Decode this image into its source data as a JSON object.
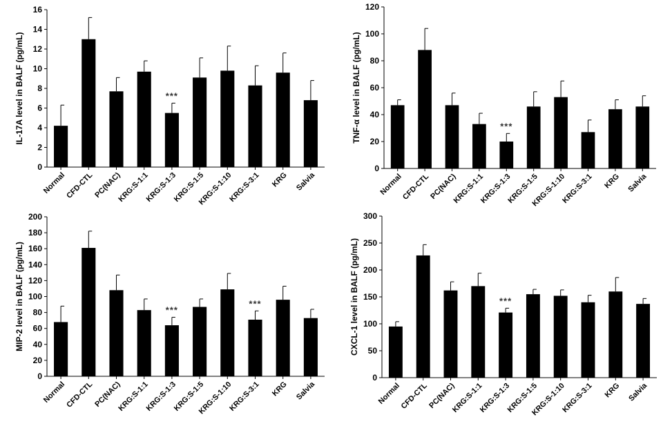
{
  "colors": {
    "bar": "#000000",
    "axis": "#000000",
    "background": "#ffffff"
  },
  "chart_data": [
    {
      "type": "bar",
      "ylabel": "IL-17A level in BALF (pg/mL)",
      "categories": [
        "Normal",
        "CFD-CTL",
        "PC(NAC)",
        "KRG:S-1:1",
        "KRG:S-1:3",
        "KRG:S-1:5",
        "KRG:S-1:10",
        "KRG:S-3:1",
        "KRG",
        "Salvia"
      ],
      "values": [
        4.2,
        13.0,
        7.7,
        9.7,
        5.5,
        9.1,
        9.8,
        8.3,
        9.6,
        6.8
      ],
      "errors": [
        2.1,
        2.2,
        1.4,
        1.1,
        1.0,
        2.0,
        2.5,
        2.0,
        2.0,
        2.0
      ],
      "ylim": [
        0,
        16
      ],
      "yticks": [
        "0",
        "2",
        "4",
        "6",
        "8",
        "10",
        "12",
        "14",
        "16"
      ],
      "significance": [
        {
          "category": "KRG:S-1:3",
          "label": "***"
        }
      ]
    },
    {
      "type": "bar",
      "ylabel": "TNF-α level in BALF (pg/mL)",
      "categories": [
        "Normal",
        "CFD-CTL",
        "PC(NAC)",
        "KRG:S-1:1",
        "KRG:S-1:3",
        "KRG:S-1:5",
        "KRG:S-1:10",
        "KRG:S-3:1",
        "KRG",
        "Salvia"
      ],
      "values": [
        47,
        88,
        47,
        33,
        20,
        46,
        53,
        27,
        44,
        46
      ],
      "errors": [
        4,
        16,
        9,
        8,
        6,
        11,
        12,
        9,
        7,
        8
      ],
      "ylim": [
        0,
        120
      ],
      "yticks": [
        "0",
        "20",
        "40",
        "60",
        "80",
        "100",
        "120"
      ],
      "significance": [
        {
          "category": "KRG:S-1:3",
          "label": "***"
        }
      ]
    },
    {
      "type": "bar",
      "ylabel": "MIP-2 level in BALF (pg/mL)",
      "categories": [
        "Normal",
        "CFD-CTL",
        "PC(NAC)",
        "KRG:S-1:1",
        "KRG:S-1:3",
        "KRG:S-1:5",
        "KRG:S-1:10",
        "KRG:S-3:1",
        "KRG",
        "Salvia"
      ],
      "values": [
        68,
        161,
        108,
        83,
        64,
        87,
        109,
        71,
        96,
        73
      ],
      "errors": [
        20,
        21,
        19,
        14,
        10,
        10,
        20,
        11,
        17,
        11
      ],
      "ylim": [
        0,
        200
      ],
      "yticks": [
        "0",
        "20",
        "40",
        "60",
        "80",
        "100",
        "120",
        "140",
        "160",
        "180",
        "200"
      ],
      "significance": [
        {
          "category": "KRG:S-1:3",
          "label": "***"
        },
        {
          "category": "KRG:S-3:1",
          "label": "***"
        }
      ]
    },
    {
      "type": "bar",
      "ylabel": "CXCL-1 level in BALF (pg/mL)",
      "categories": [
        "Normal",
        "CFD-CTL",
        "PC(NAC)",
        "KRG:S-1:1",
        "KRG:S-1:3",
        "KRG:S-1:5",
        "KRG:S-1:10",
        "KRG:S-3:1",
        "KRG",
        "Salvia"
      ],
      "values": [
        95,
        227,
        162,
        170,
        121,
        155,
        152,
        140,
        160,
        137
      ],
      "errors": [
        9,
        20,
        16,
        24,
        8,
        9,
        11,
        13,
        26,
        10
      ],
      "ylim": [
        0,
        300
      ],
      "yticks": [
        "0",
        "50",
        "100",
        "150",
        "200",
        "250",
        "300"
      ],
      "significance": [
        {
          "category": "KRG:S-1:3",
          "label": "***"
        }
      ]
    }
  ]
}
